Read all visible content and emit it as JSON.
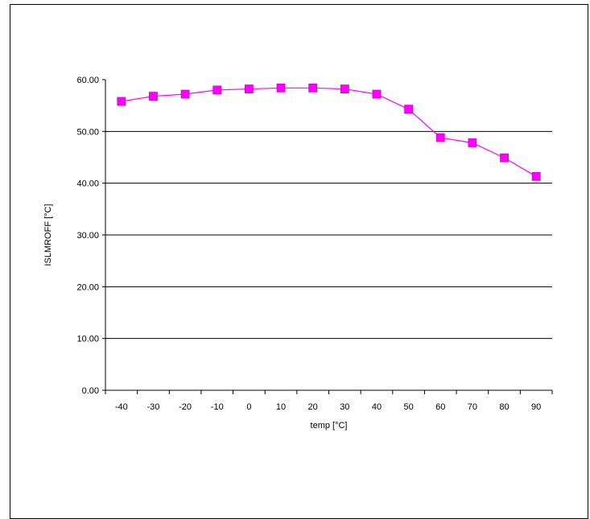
{
  "chart_data": {
    "type": "line",
    "title": "",
    "xlabel": "temp [°C]",
    "ylabel": "ISLMROFF [°C]",
    "ylim": [
      0,
      60
    ],
    "y_ticks": [
      "0.00",
      "10.00",
      "20.00",
      "30.00",
      "40.00",
      "50.00",
      "60.00"
    ],
    "y_tick_values": [
      0,
      10,
      20,
      30,
      40,
      50,
      60
    ],
    "categories": [
      "-40",
      "-30",
      "-20",
      "-10",
      "0",
      "10",
      "20",
      "30",
      "40",
      "50",
      "60",
      "70",
      "80",
      "90"
    ],
    "series": [
      {
        "values": [
          55.8,
          56.8,
          57.2,
          58.0,
          58.2,
          58.4,
          58.4,
          58.2,
          57.2,
          54.3,
          48.8,
          47.8,
          44.9,
          41.3
        ]
      }
    ],
    "colors": {
      "series": "#ff00ff",
      "marker_edge": "#cc00cc",
      "grid": "#000000"
    },
    "grid": "horizontal",
    "marker": "square"
  }
}
